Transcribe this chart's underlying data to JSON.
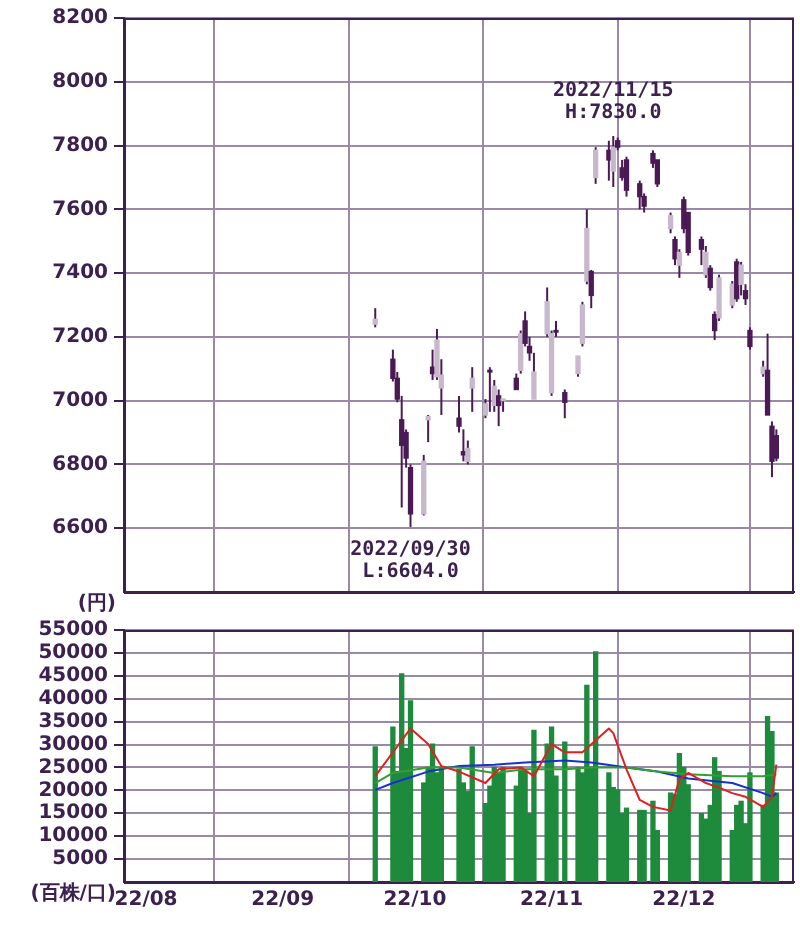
{
  "chart_data": [
    {
      "type": "candlestick",
      "ylabel": "(円)",
      "color": "#4b1a55",
      "grid": true,
      "tick_labels": "y",
      "colors": [
        "#c8b8cc",
        "#4b1a55",
        "#4b1a55",
        "#4b1a55",
        "#4b1a55",
        "#4b1a55",
        "#c8b8cc",
        "#c8b8cc",
        "#4b1a55",
        "#c8b8cc",
        "#c8b8cc",
        "#4b1a55",
        "#4b1a55",
        "#c8b8cc",
        "#c8b8cc",
        "#c8b8cc",
        "#4b1a55",
        "#c8b8cc",
        "#4b1a55",
        "#c8b8cc",
        "#4b1a55",
        "#c8b8cc",
        "#4b1a55",
        "#4b1a55",
        "#c8b8cc",
        "#c8b8cc",
        "#c8b8cc",
        "#4b1a55",
        "#4b1a55",
        "#c8b8cc",
        "#c8b8cc",
        "#c8b8cc",
        "#4b1a55",
        "#c8b8cc",
        "#4b1a55",
        "#c8b8cc",
        "#4b1a55",
        "#4b1a55",
        "#4b1a55",
        "#4b1a55",
        "#4b1a55",
        "#4b1a55",
        "#4b1a55",
        "#c8b8cc",
        "#4b1a55",
        "#c8b8cc",
        "#4b1a55",
        "#4b1a55",
        "#4b1a55",
        "#c8b8cc",
        "#4b1a55",
        "#4b1a55",
        "#c8b8cc",
        "#c8b8cc",
        "#4b1a55",
        "#c8b8cc",
        "#4b1a55",
        "#4b1a55",
        "#c8b8cc",
        "#4b1a55",
        "#4b1a55",
        "#4b1a55"
      ],
      "x": [
        "2022-09-22",
        "2022-09-26",
        "2022-09-27",
        "2022-09-28",
        "2022-09-29",
        "2022-09-30",
        "2022-10-03",
        "2022-10-04",
        "2022-10-05",
        "2022-10-06",
        "2022-10-07",
        "2022-10-11",
        "2022-10-12",
        "2022-10-13",
        "2022-10-14",
        "2022-10-17",
        "2022-10-18",
        "2022-10-19",
        "2022-10-20",
        "2022-10-21",
        "2022-10-24",
        "2022-10-25",
        "2022-10-26",
        "2022-10-27",
        "2022-10-28",
        "2022-10-31",
        "2022-11-01",
        "2022-11-02",
        "2022-11-04",
        "2022-11-07",
        "2022-11-08",
        "2022-11-09",
        "2022-11-10",
        "2022-11-11",
        "2022-11-14",
        "2022-11-15",
        "2022-11-16",
        "2022-11-17",
        "2022-11-18",
        "2022-11-21",
        "2022-11-22",
        "2022-11-24",
        "2022-11-25",
        "2022-11-28",
        "2022-11-29",
        "2022-11-30",
        "2022-12-01",
        "2022-12-02",
        "2022-12-05",
        "2022-12-06",
        "2022-12-07",
        "2022-12-08",
        "2022-12-09",
        "2022-12-12",
        "2022-12-13",
        "2022-12-14",
        "2022-12-15",
        "2022-12-16",
        "2022-12-19",
        "2022-12-20",
        "2022-12-21",
        "2022-12-22"
      ],
      "ohlc": [
        [
          7240,
          7290,
          7230,
          7255
        ],
        [
          7130,
          7160,
          7060,
          7070
        ],
        [
          7070,
          7090,
          6995,
          7005
        ],
        [
          6940,
          7015,
          6665,
          6860
        ],
        [
          6900,
          6910,
          6790,
          6820
        ],
        [
          6790,
          6800,
          6604,
          6645
        ],
        [
          6645,
          6830,
          6640,
          6810
        ],
        [
          6940,
          6955,
          6870,
          6950
        ],
        [
          7105,
          7160,
          7065,
          7085
        ],
        [
          7075,
          7225,
          7065,
          7190
        ],
        [
          7040,
          7130,
          6955,
          7080
        ],
        [
          6945,
          7015,
          6900,
          6920
        ],
        [
          6840,
          6910,
          6810,
          6830
        ],
        [
          6810,
          6875,
          6800,
          6850
        ],
        [
          7040,
          7105,
          6965,
          7070
        ],
        [
          6955,
          7005,
          6945,
          6990
        ],
        [
          7095,
          7105,
          6965,
          7090
        ],
        [
          6985,
          7065,
          6965,
          7045
        ],
        [
          7015,
          7035,
          6920,
          6985
        ],
        [
          7000,
          7005,
          6965,
          7005
        ],
        [
          7070,
          7085,
          7035,
          7035
        ],
        [
          7095,
          7220,
          7085,
          7210
        ],
        [
          7250,
          7280,
          7170,
          7180
        ],
        [
          7170,
          7200,
          7125,
          7150
        ],
        [
          7005,
          7150,
          7005,
          7090
        ],
        [
          7210,
          7355,
          7200,
          7310
        ],
        [
          7025,
          7220,
          7015,
          7210
        ],
        [
          7220,
          7250,
          7200,
          7215
        ],
        [
          7025,
          7035,
          6945,
          6995
        ],
        [
          7085,
          7140,
          7075,
          7140
        ],
        [
          7180,
          7310,
          7170,
          7300
        ],
        [
          7375,
          7600,
          7365,
          7540
        ],
        [
          7405,
          7410,
          7290,
          7330
        ],
        [
          7700,
          7795,
          7680,
          7785
        ],
        [
          7785,
          7815,
          7690,
          7755
        ],
        [
          7720,
          7830,
          7670,
          7795
        ],
        [
          7815,
          7825,
          7785,
          7795
        ],
        [
          7730,
          7755,
          7690,
          7700
        ],
        [
          7755,
          7765,
          7640,
          7660
        ],
        [
          7680,
          7690,
          7600,
          7640
        ],
        [
          7640,
          7650,
          7590,
          7610
        ],
        [
          7775,
          7785,
          7730,
          7745
        ],
        [
          7755,
          7755,
          7670,
          7680
        ],
        [
          7540,
          7590,
          7525,
          7580
        ],
        [
          7505,
          7515,
          7425,
          7445
        ],
        [
          7425,
          7475,
          7385,
          7465
        ],
        [
          7630,
          7640,
          7525,
          7540
        ],
        [
          7590,
          7590,
          7455,
          7465
        ],
        [
          7505,
          7515,
          7425,
          7475
        ],
        [
          7395,
          7485,
          7385,
          7465
        ],
        [
          7415,
          7425,
          7345,
          7355
        ],
        [
          7270,
          7280,
          7190,
          7220
        ],
        [
          7260,
          7395,
          7250,
          7385
        ],
        [
          7300,
          7375,
          7290,
          7365
        ],
        [
          7435,
          7445,
          7310,
          7320
        ],
        [
          7365,
          7435,
          7330,
          7425
        ],
        [
          7345,
          7365,
          7300,
          7320
        ],
        [
          7220,
          7230,
          7160,
          7170
        ],
        [
          7085,
          7125,
          7075,
          7105
        ],
        [
          7095,
          7210,
          6955,
          6955
        ],
        [
          6920,
          6935,
          6760,
          6810
        ],
        [
          6890,
          6910,
          6810,
          6820
        ]
      ],
      "xlim": [
        "2022-07-27",
        "2022-12-26"
      ],
      "xticks": [
        {
          "value": "2022-08-01",
          "label": null
        },
        {
          "value": "2022-09-01",
          "label": null
        },
        {
          "value": "2022-10-01",
          "label": null
        },
        {
          "value": "2022-11-01",
          "label": null
        },
        {
          "value": "2022-12-01",
          "label": null
        }
      ],
      "ylim": [
        6400,
        8200
      ],
      "yticks": [
        6600,
        6800,
        7000,
        7200,
        7400,
        7600,
        7800,
        8000,
        8200
      ],
      "annotations": [
        {
          "text": "2022/11/15\nH:7830.0",
          "x": "2022-11-15",
          "y": 7830
        },
        {
          "text": "2022/09/30\nL:6604.0",
          "x": "2022-09-30",
          "y": 6604
        }
      ]
    },
    {
      "type": "bar",
      "ylabel": "(百株/口)",
      "grid": true,
      "x": [
        "2022-09-22",
        "2022-09-26",
        "2022-09-27",
        "2022-09-28",
        "2022-09-29",
        "2022-09-30",
        "2022-10-03",
        "2022-10-04",
        "2022-10-05",
        "2022-10-06",
        "2022-10-07",
        "2022-10-11",
        "2022-10-12",
        "2022-10-13",
        "2022-10-14",
        "2022-10-17",
        "2022-10-18",
        "2022-10-19",
        "2022-10-20",
        "2022-10-21",
        "2022-10-24",
        "2022-10-25",
        "2022-10-26",
        "2022-10-27",
        "2022-10-28",
        "2022-10-31",
        "2022-11-01",
        "2022-11-02",
        "2022-11-04",
        "2022-11-07",
        "2022-11-08",
        "2022-11-09",
        "2022-11-10",
        "2022-11-11",
        "2022-11-14",
        "2022-11-15",
        "2022-11-16",
        "2022-11-17",
        "2022-11-18",
        "2022-11-21",
        "2022-11-22",
        "2022-11-24",
        "2022-11-25",
        "2022-11-28",
        "2022-11-29",
        "2022-11-30",
        "2022-12-01",
        "2022-12-02",
        "2022-12-05",
        "2022-12-06",
        "2022-12-07",
        "2022-12-08",
        "2022-12-09",
        "2022-12-12",
        "2022-12-13",
        "2022-12-14",
        "2022-12-15",
        "2022-12-16",
        "2022-12-19",
        "2022-12-20",
        "2022-12-21",
        "2022-12-22"
      ],
      "series": [
        {
          "type": "bar",
          "color": "#1e8a3c",
          "values": [
            29500,
            33800,
            24100,
            45400,
            29100,
            39500,
            21600,
            25000,
            30100,
            23800,
            25000,
            24600,
            21600,
            19700,
            29500,
            17100,
            20900,
            25000,
            23800,
            25000,
            20900,
            25000,
            24100,
            14900,
            33100,
            30100,
            33800,
            23100,
            30500,
            25000,
            23800,
            42900,
            25000,
            50200,
            23800,
            20600,
            20100,
            14900,
            16100,
            15600,
            15600,
            17600,
            11200,
            19400,
            19100,
            28000,
            25000,
            21200,
            14900,
            13700,
            16700,
            27100,
            24100,
            11200,
            16700,
            17600,
            12700,
            23800,
            16700,
            36100,
            32800,
            19400
          ]
        },
        {
          "type": "line",
          "color": "#e02020",
          "x": [
            "2022-09-22",
            "2022-09-30",
            "2022-10-04",
            "2022-10-07",
            "2022-10-11",
            "2022-10-17",
            "2022-10-20",
            "2022-10-25",
            "2022-10-28",
            "2022-11-01",
            "2022-11-04",
            "2022-11-08",
            "2022-11-14",
            "2022-11-15",
            "2022-11-18",
            "2022-11-21",
            "2022-11-24",
            "2022-11-28",
            "2022-11-30",
            "2022-12-02",
            "2022-12-06",
            "2022-12-09",
            "2022-12-12",
            "2022-12-15",
            "2022-12-19",
            "2022-12-21",
            "2022-12-22"
          ],
          "values": [
            23100,
            33500,
            30100,
            25300,
            24100,
            21600,
            24600,
            25000,
            23100,
            30100,
            28300,
            28300,
            33500,
            32500,
            24600,
            17900,
            16400,
            15600,
            22400,
            23800,
            21600,
            20600,
            19400,
            18600,
            16400,
            18600,
            25600
          ]
        },
        {
          "type": "line",
          "color": "#30a030",
          "x": [
            "2022-09-22",
            "2022-09-26",
            "2022-10-04",
            "2022-10-11",
            "2022-10-19",
            "2022-10-26",
            "2022-11-04",
            "2022-11-10",
            "2022-11-18",
            "2022-11-25",
            "2022-12-02",
            "2022-12-12",
            "2022-12-19",
            "2022-12-22"
          ],
          "values": [
            21600,
            23800,
            25000,
            25000,
            23800,
            24600,
            24600,
            25000,
            25000,
            24100,
            23500,
            23100,
            23100,
            23500
          ]
        },
        {
          "type": "line",
          "color": "#1830d0",
          "x": [
            "2022-09-22",
            "2022-09-26",
            "2022-10-04",
            "2022-10-11",
            "2022-10-19",
            "2022-10-26",
            "2022-11-04",
            "2022-11-10",
            "2022-11-18",
            "2022-11-25",
            "2022-12-02",
            "2022-12-12",
            "2022-12-19",
            "2022-12-21",
            "2022-12-22"
          ],
          "values": [
            20100,
            21600,
            24100,
            25300,
            25600,
            26100,
            26500,
            26100,
            25000,
            24100,
            22600,
            21600,
            19400,
            18600,
            19400
          ]
        }
      ],
      "xlim": [
        "2022-07-27",
        "2022-12-26"
      ],
      "xticks": [
        {
          "value": "2022-08-01",
          "label": "22/08"
        },
        {
          "value": "2022-09-01",
          "label": "22/09"
        },
        {
          "value": "2022-10-01",
          "label": "22/10"
        },
        {
          "value": "2022-11-01",
          "label": "22/11"
        },
        {
          "value": "2022-12-01",
          "label": "22/12"
        }
      ],
      "ylim": [
        0,
        55000
      ],
      "yticks": [
        5000,
        10000,
        15000,
        20000,
        25000,
        30000,
        35000,
        40000,
        45000,
        50000,
        55000
      ]
    }
  ]
}
